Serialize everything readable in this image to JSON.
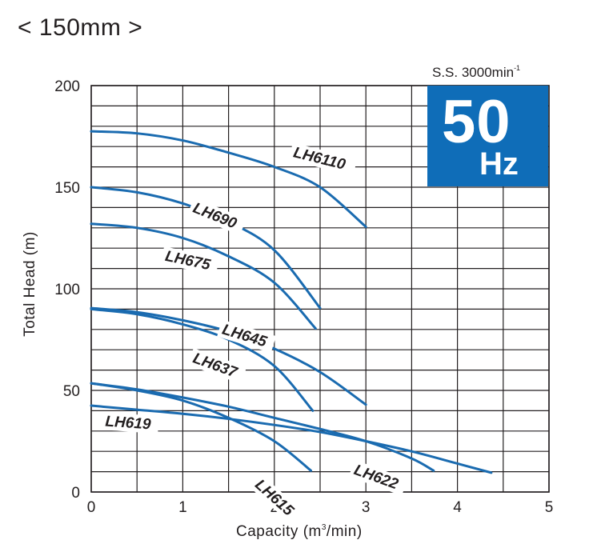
{
  "header": {
    "title": "< 150mm >",
    "speed_prefix": "S.S. 3000min",
    "speed_sup": "-1",
    "freq_value": "50",
    "freq_unit": "Hz"
  },
  "colors": {
    "curve": "#1a6bb0",
    "badge": "#0f6db8",
    "grid": "#231f20"
  },
  "chart_data": {
    "type": "line",
    "title": "< 150mm >",
    "subtitle": "S.S. 3000min-1  50 Hz",
    "xlabel": "Capacity (m3/min)",
    "ylabel": "Total Head (m)",
    "xlim": [
      0,
      5
    ],
    "ylim": [
      0,
      200
    ],
    "x_ticks": [
      0,
      1,
      2,
      3,
      4,
      5
    ],
    "y_ticks": [
      0,
      50,
      100,
      150,
      200
    ],
    "x_grid_step": 0.5,
    "y_grid_step": 10,
    "grid": true,
    "legend": "inline labels",
    "series": [
      {
        "name": "LH6110",
        "x": [
          0,
          0.5,
          1.0,
          1.5,
          2.0,
          2.5,
          3.0
        ],
        "y": [
          177.5,
          176.5,
          173,
          167,
          160,
          150,
          130.5
        ],
        "label": {
          "x": 2.2,
          "y": 165,
          "angle": 14
        }
      },
      {
        "name": "LH690",
        "x": [
          0,
          0.5,
          1.0,
          1.5,
          2.0,
          2.5
        ],
        "y": [
          150,
          147.5,
          142,
          133,
          119,
          90.5
        ],
        "label": {
          "x": 1.1,
          "y": 138,
          "angle": 22
        }
      },
      {
        "name": "LH675",
        "x": [
          0,
          0.5,
          1.0,
          1.5,
          2.0,
          2.45
        ],
        "y": [
          132,
          130,
          125,
          116,
          103,
          80.5
        ],
        "label": {
          "x": 0.8,
          "y": 114,
          "angle": 12
        }
      },
      {
        "name": "LH645",
        "x": [
          0,
          0.5,
          1.0,
          1.5,
          2.0,
          2.5,
          3.0
        ],
        "y": [
          90.5,
          88.5,
          84.5,
          79,
          70.5,
          59,
          43
        ],
        "label": {
          "x": 1.42,
          "y": 78,
          "angle": 17
        }
      },
      {
        "name": "LH637",
        "x": [
          0,
          0.5,
          1.0,
          1.5,
          2.0,
          2.42
        ],
        "y": [
          90,
          87.5,
          82.5,
          75,
          62,
          40
        ],
        "label": {
          "x": 1.1,
          "y": 64,
          "angle": 20
        }
      },
      {
        "name": "LH622",
        "x": [
          0,
          0.5,
          1.0,
          1.5,
          2.0,
          2.5,
          3.0,
          3.5,
          3.74
        ],
        "y": [
          53.5,
          50.5,
          46.5,
          42,
          36.5,
          31,
          25,
          16.5,
          10.5
        ],
        "label": {
          "x": 2.86,
          "y": 9,
          "angle": 20
        }
      },
      {
        "name": "LH615",
        "x": [
          0,
          0.5,
          1.0,
          1.5,
          2.0,
          2.4
        ],
        "y": [
          53.5,
          50,
          45,
          36.5,
          25,
          10.5
        ],
        "label": {
          "x": 1.78,
          "y": 3,
          "angle": 42
        }
      },
      {
        "name": "LH619",
        "x": [
          0,
          0.5,
          1.0,
          1.5,
          2.0,
          2.5,
          3.0,
          3.5,
          4.0,
          4.37
        ],
        "y": [
          42.5,
          40.5,
          38.5,
          36,
          33,
          29.5,
          25,
          20,
          14,
          9.5
        ],
        "label": {
          "x": 0.15,
          "y": 32.5,
          "angle": 4
        }
      }
    ]
  },
  "axes": {
    "xlabel_main": "Capacity (m",
    "xlabel_sup": "3",
    "xlabel_tail": "/min)",
    "ylabel": "Total Head (m)"
  }
}
